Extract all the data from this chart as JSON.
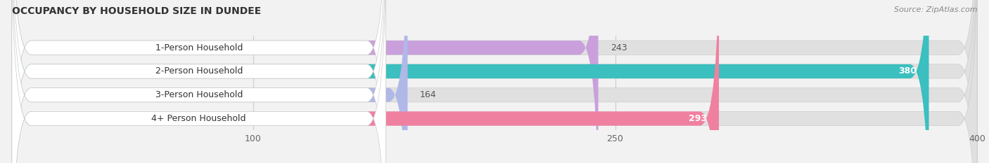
{
  "title": "OCCUPANCY BY HOUSEHOLD SIZE IN DUNDEE",
  "source": "Source: ZipAtlas.com",
  "categories": [
    "1-Person Household",
    "2-Person Household",
    "3-Person Household",
    "4+ Person Household"
  ],
  "values": [
    243,
    380,
    164,
    293
  ],
  "colors": [
    "#c9a0dc",
    "#3bbfbf",
    "#b0b8e8",
    "#f080a0"
  ],
  "bar_background": "#e0e0e0",
  "label_bg": "#ffffff",
  "label_colors_value": [
    "#555555",
    "#ffffff",
    "#555555",
    "#ffffff"
  ],
  "xlim_min": 0,
  "xlim_max": 400,
  "xticks": [
    100,
    250,
    400
  ],
  "figsize": [
    14.06,
    2.33
  ],
  "dpi": 100,
  "background_color": "#f2f2f2",
  "title_fontsize": 10,
  "bar_label_fontsize": 9,
  "value_fontsize": 9
}
